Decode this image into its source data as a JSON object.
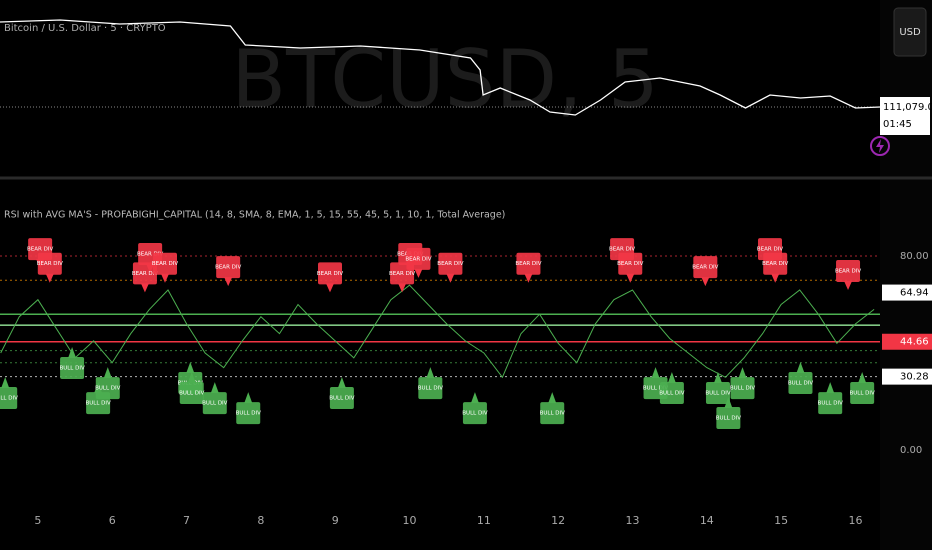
{
  "chart_data": [
    {
      "type": "line",
      "title": "Bitcoin / U.S. Dollar · 5 · CRYPTO",
      "watermark": "BTCUSD, 5",
      "currency": "USD",
      "last_price": {
        "value": 111079,
        "label": "111,079.00"
      },
      "countdown": "01:45",
      "color": "#ffffff",
      "x": [
        4.49,
        5.3,
        6.1,
        6.91,
        7.59,
        7.79,
        8.53,
        9.34,
        10.14,
        10.82,
        10.95,
        10.99,
        11.22,
        11.62,
        11.89,
        12.23,
        12.57,
        12.9,
        13.37,
        13.91,
        14.18,
        14.52,
        14.85,
        15.26,
        15.66,
        16.0,
        16.33
      ],
      "values": [
        115329,
        115429,
        115229,
        115329,
        115129,
        114179,
        114029,
        114129,
        113929,
        113529,
        112929,
        111679,
        112029,
        111429,
        110829,
        110679,
        111429,
        112329,
        112529,
        112129,
        111679,
        111029,
        111679,
        111529,
        111629,
        111029,
        111079
      ],
      "xlim": [
        4.49,
        16.33
      ],
      "ylim": [
        107679,
        116429
      ]
    },
    {
      "type": "line",
      "title": "RSI with AVG MA'S - PROFABIGHI_CAPITAL (14, 8, SMA, 8, EMA, 1, 5, 15, 55, 45, 5, 1, 10, 1, Total Average)",
      "color": "#4caf50",
      "x": [
        4.5,
        4.75,
        5.0,
        5.25,
        5.5,
        5.75,
        6.0,
        6.25,
        6.5,
        6.75,
        7.0,
        7.25,
        7.5,
        7.75,
        8.0,
        8.25,
        8.5,
        8.75,
        9.0,
        9.25,
        9.5,
        9.75,
        10.0,
        10.25,
        10.5,
        10.75,
        11.0,
        11.25,
        11.5,
        11.75,
        12.0,
        12.25,
        12.5,
        12.75,
        13.0,
        13.25,
        13.5,
        13.75,
        14.0,
        14.25,
        14.5,
        14.75,
        15.0,
        15.25,
        15.5,
        15.75,
        16.0,
        16.25
      ],
      "values": [
        40,
        55,
        62,
        50,
        38,
        45,
        36,
        48,
        58,
        66,
        52,
        40,
        34,
        45,
        55,
        48,
        60,
        52,
        45,
        38,
        50,
        62,
        68,
        60,
        52,
        45,
        40,
        30,
        48,
        56,
        44,
        36,
        52,
        62,
        66,
        55,
        46,
        40,
        34,
        30,
        38,
        48,
        60,
        66,
        56,
        44,
        52,
        58
      ],
      "xlim": [
        4.49,
        16.33
      ],
      "ylim": [
        -20.6,
        109.3
      ],
      "xticks": [
        5,
        6,
        7,
        8,
        9,
        10,
        11,
        12,
        13,
        14,
        15,
        16
      ],
      "yticks": [
        {
          "value": 80,
          "label": "80.00"
        },
        {
          "value": 0,
          "label": "0.00"
        }
      ],
      "levels": [
        {
          "value": 80,
          "color": "#f23645",
          "style": "dotted"
        },
        {
          "value": 70,
          "color": "#ff9800",
          "style": "dotted"
        },
        {
          "value": 64.94,
          "label": "64.94",
          "color": "#ffffff",
          "style": "none"
        },
        {
          "value": 56,
          "color": "#4caf50",
          "style": "solid"
        },
        {
          "value": 51.5,
          "color": "#81c784",
          "style": "solid"
        },
        {
          "value": 44.66,
          "label": "44.66",
          "color": "#f23645",
          "style": "solid"
        },
        {
          "value": 41,
          "color": "#4caf50",
          "style": "dotted"
        },
        {
          "value": 36,
          "color": "#4caf50",
          "style": "dotted"
        },
        {
          "value": 30.28,
          "label": "30.28",
          "color": "#ffffff",
          "style": "dotted"
        }
      ],
      "bear": {
        "label": "BEAR DIV",
        "color": "#f23645",
        "x": [
          5.03,
          5.16,
          6.51,
          6.44,
          6.71,
          7.56,
          8.93,
          10.01,
          10.12,
          9.9,
          10.55,
          11.6,
          12.86,
          12.97,
          13.98,
          14.85,
          14.92,
          15.9
        ],
        "values": [
          75,
          69,
          73,
          65,
          69,
          67.6,
          65,
          73,
          71,
          65,
          69,
          69,
          75,
          69,
          67.6,
          75,
          69,
          66
        ]
      },
      "bull": {
        "label": "BULL DIV",
        "color": "#4caf50",
        "x": [
          4.56,
          5.46,
          5.81,
          5.94,
          7.05,
          7.07,
          7.38,
          7.83,
          9.09,
          10.28,
          10.88,
          11.92,
          13.31,
          13.53,
          14.15,
          14.29,
          14.48,
          15.26,
          15.66,
          16.09
        ],
        "values": [
          30.1,
          42.5,
          28,
          34.2,
          36.3,
          32.2,
          28,
          23.9,
          30.1,
          34.2,
          23.9,
          23.9,
          34.2,
          32.2,
          32.2,
          21.9,
          34.2,
          36.3,
          28,
          32.2
        ]
      }
    }
  ]
}
